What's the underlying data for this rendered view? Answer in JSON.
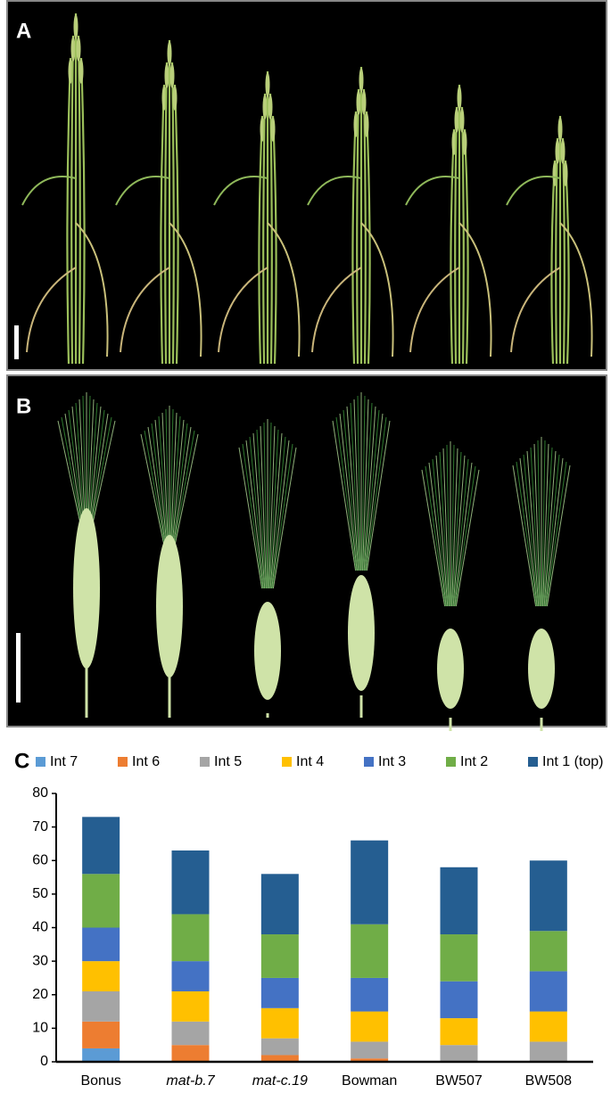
{
  "panel_labels": [
    "A",
    "B",
    "C"
  ],
  "chart_data": {
    "type": "bar",
    "stacked": true,
    "categories": [
      "Bonus",
      "mat-b.7",
      "mat-c.19",
      "Bowman",
      "BW507",
      "BW508"
    ],
    "series": [
      {
        "name": "Int 7",
        "color": "#5b9bd5",
        "values": [
          4,
          0,
          0,
          0,
          0,
          0
        ]
      },
      {
        "name": "Int 6",
        "color": "#ed7d31",
        "values": [
          8,
          5,
          2,
          1,
          0,
          0
        ]
      },
      {
        "name": "Int 5",
        "color": "#a5a5a5",
        "values": [
          9,
          7,
          5,
          5,
          5,
          6
        ]
      },
      {
        "name": "Int 4",
        "color": "#ffc000",
        "values": [
          9,
          9,
          9,
          9,
          8,
          9
        ]
      },
      {
        "name": "Int 3",
        "color": "#4472c4",
        "values": [
          10,
          9,
          9,
          10,
          11,
          12
        ]
      },
      {
        "name": "Int 2",
        "color": "#70ad47",
        "values": [
          16,
          14,
          13,
          16,
          14,
          12
        ]
      },
      {
        "name": "Int 1 (top)",
        "color": "#255e91",
        "values": [
          17,
          19,
          18,
          25,
          20,
          21
        ]
      }
    ],
    "ylim": [
      0,
      80
    ],
    "yticks": [
      0,
      10,
      20,
      30,
      40,
      50,
      60,
      70,
      80
    ],
    "grid": false
  }
}
